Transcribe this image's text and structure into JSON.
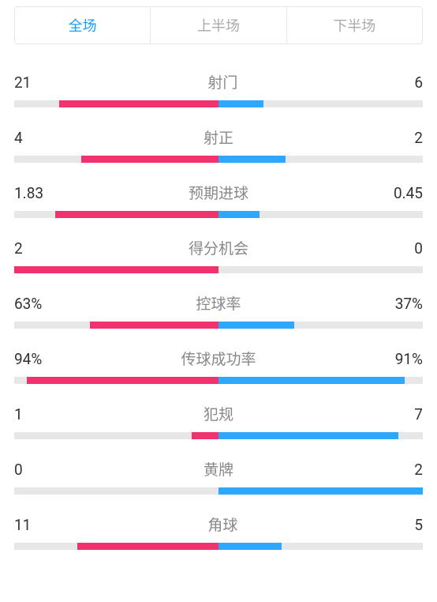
{
  "colors": {
    "tab_active": "#1e9cff",
    "tab_inactive": "#aaaaaa",
    "home_bar": "#f0326e",
    "away_bar": "#2ea7ff",
    "bar_bg": "#e7e7e7"
  },
  "tabs": {
    "items": [
      {
        "label": "全场",
        "active": true
      },
      {
        "label": "上半场",
        "active": false
      },
      {
        "label": "下半场",
        "active": false
      }
    ]
  },
  "stats": [
    {
      "label": "射门",
      "home": "21",
      "away": "6",
      "home_pct": 78,
      "away_pct": 22
    },
    {
      "label": "射正",
      "home": "4",
      "away": "2",
      "home_pct": 67,
      "away_pct": 33
    },
    {
      "label": "预期进球",
      "home": "1.83",
      "away": "0.45",
      "home_pct": 80,
      "away_pct": 20
    },
    {
      "label": "得分机会",
      "home": "2",
      "away": "0",
      "home_pct": 100,
      "away_pct": 0
    },
    {
      "label": "控球率",
      "home": "63%",
      "away": "37%",
      "home_pct": 63,
      "away_pct": 37
    },
    {
      "label": "传球成功率",
      "home": "94%",
      "away": "91%",
      "home_pct": 94,
      "away_pct": 91
    },
    {
      "label": "犯规",
      "home": "1",
      "away": "7",
      "home_pct": 13,
      "away_pct": 88
    },
    {
      "label": "黄牌",
      "home": "0",
      "away": "2",
      "home_pct": 0,
      "away_pct": 100
    },
    {
      "label": "角球",
      "home": "11",
      "away": "5",
      "home_pct": 69,
      "away_pct": 31
    }
  ]
}
